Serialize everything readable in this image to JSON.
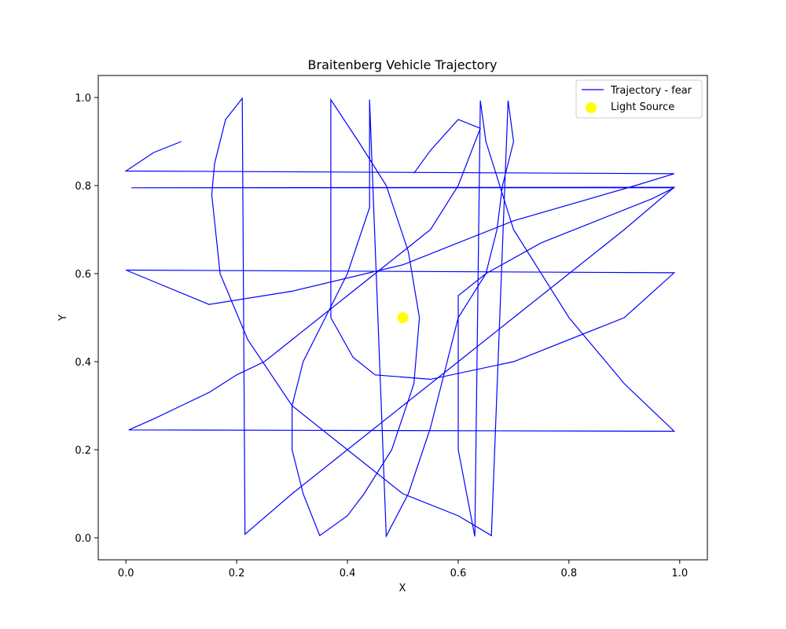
{
  "chart_data": {
    "type": "line",
    "title": "Braitenberg Vehicle Trajectory",
    "xlabel": "X",
    "ylabel": "Y",
    "xlim": [
      -0.05,
      1.05
    ],
    "ylim": [
      -0.05,
      1.05
    ],
    "grid": false,
    "legend_position": "top-right",
    "x_ticks": [
      0.0,
      0.2,
      0.4,
      0.6,
      0.8,
      1.0
    ],
    "y_ticks": [
      0.0,
      0.2,
      0.4,
      0.6,
      0.8,
      1.0
    ],
    "x_tick_labels": [
      "0.0",
      "0.2",
      "0.4",
      "0.6",
      "0.8",
      "1.0"
    ],
    "y_tick_labels": [
      "0.0",
      "0.2",
      "0.4",
      "0.6",
      "0.8",
      "1.0"
    ],
    "series": [
      {
        "name": "Trajectory - fear",
        "type": "line",
        "color": "#0000ff",
        "x": [
          0.1,
          0.05,
          0.0,
          0.99,
          0.92,
          0.7,
          0.5,
          0.3,
          0.15,
          0.0,
          0.99,
          0.9,
          0.7,
          0.55,
          0.45,
          0.41,
          0.37,
          0.37,
          0.42,
          0.47,
          0.51,
          0.53,
          0.52,
          0.48,
          0.43,
          0.4,
          0.35,
          0.32,
          0.3,
          0.3,
          0.32,
          0.36,
          0.4,
          0.44,
          0.44,
          0.47,
          0.51,
          0.55,
          0.58,
          0.6,
          0.65,
          0.67,
          0.68,
          0.69,
          0.7,
          0.69,
          0.66,
          0.6,
          0.5,
          0.4,
          0.3,
          0.22,
          0.17,
          0.155,
          0.16,
          0.18,
          0.21,
          0.215,
          0.3,
          0.4,
          0.5,
          0.6,
          0.7,
          0.8,
          0.9,
          0.99,
          0.01,
          0.01,
          0.99,
          0.95,
          0.85,
          0.75,
          0.65,
          0.6,
          0.6,
          0.6,
          0.63,
          0.635,
          0.64,
          0.65,
          0.7,
          0.8,
          0.9,
          0.99,
          0.005,
          0.05,
          0.1,
          0.15,
          0.2,
          0.25,
          0.3,
          0.35,
          0.4,
          0.45,
          0.5,
          0.55,
          0.6,
          0.64,
          0.6,
          0.55,
          0.52
        ],
        "y": [
          0.9,
          0.875,
          0.833,
          0.827,
          0.8,
          0.72,
          0.62,
          0.56,
          0.53,
          0.608,
          0.602,
          0.5,
          0.4,
          0.36,
          0.37,
          0.41,
          0.5,
          0.995,
          0.9,
          0.8,
          0.65,
          0.5,
          0.35,
          0.2,
          0.1,
          0.05,
          0.005,
          0.1,
          0.2,
          0.3,
          0.4,
          0.5,
          0.6,
          0.75,
          0.995,
          0.004,
          0.1,
          0.25,
          0.4,
          0.5,
          0.6,
          0.7,
          0.8,
          0.85,
          0.9,
          0.993,
          0.005,
          0.05,
          0.1,
          0.2,
          0.3,
          0.45,
          0.6,
          0.78,
          0.85,
          0.95,
          0.998,
          0.008,
          0.1,
          0.2,
          0.3,
          0.4,
          0.5,
          0.6,
          0.7,
          0.796,
          0.795,
          0.795,
          0.795,
          0.77,
          0.72,
          0.67,
          0.6,
          0.55,
          0.4,
          0.2,
          0.003,
          0.5,
          0.993,
          0.9,
          0.7,
          0.5,
          0.35,
          0.242,
          0.245,
          0.27,
          0.3,
          0.33,
          0.37,
          0.4,
          0.45,
          0.5,
          0.55,
          0.6,
          0.65,
          0.7,
          0.8,
          0.93,
          0.95,
          0.88,
          0.828
        ]
      },
      {
        "name": "Light Source",
        "type": "scatter",
        "color": "#ffff00",
        "x": [
          0.5
        ],
        "y": [
          0.5
        ]
      }
    ]
  }
}
